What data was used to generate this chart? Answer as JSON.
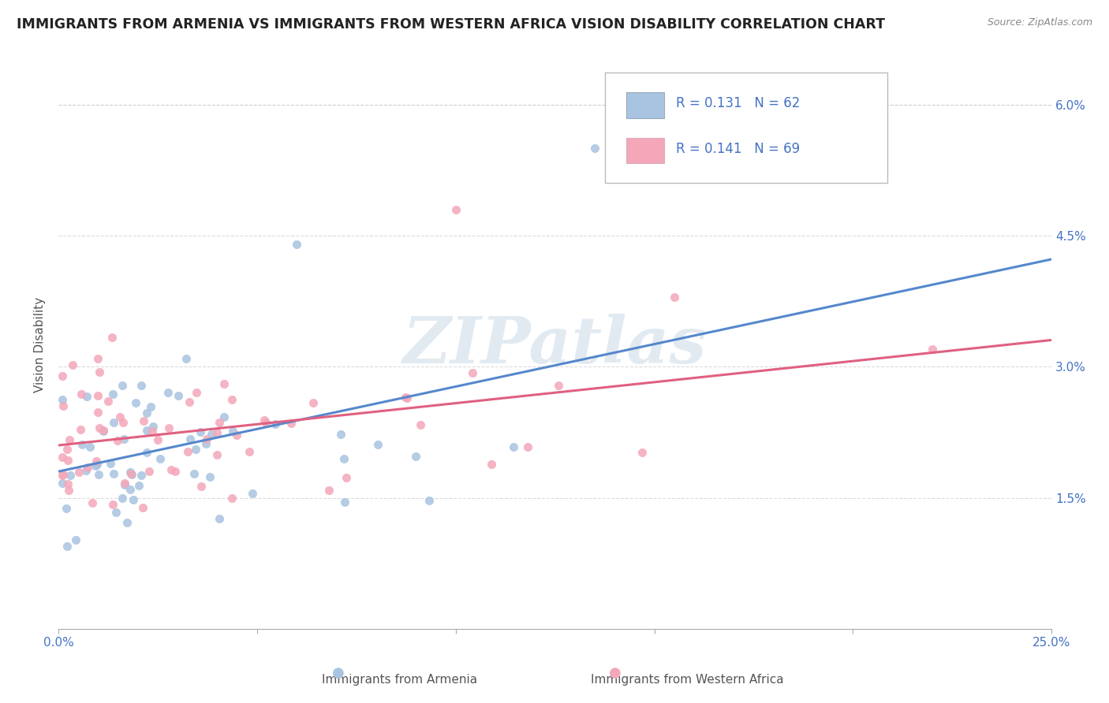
{
  "title": "IMMIGRANTS FROM ARMENIA VS IMMIGRANTS FROM WESTERN AFRICA VISION DISABILITY CORRELATION CHART",
  "source_text": "Source: ZipAtlas.com",
  "ylabel": "Vision Disability",
  "xlim": [
    0.0,
    0.25
  ],
  "ylim": [
    0.0,
    0.065
  ],
  "ytick_vals": [
    0.015,
    0.03,
    0.045,
    0.06
  ],
  "ytick_labels": [
    "1.5%",
    "3.0%",
    "4.5%",
    "6.0%"
  ],
  "xtick_vals": [
    0.0,
    0.25
  ],
  "xtick_labels": [
    "0.0%",
    "25.0%"
  ],
  "r_armenia": 0.131,
  "n_armenia": 62,
  "r_western_africa": 0.141,
  "n_western_africa": 69,
  "color_armenia": "#a8c4e0",
  "color_western_africa": "#f4a7b9",
  "trendline_color_armenia": "#5588cc",
  "trendline_color_western_africa": "#e06080",
  "legend_label_armenia": "Immigrants from Armenia",
  "legend_label_western_africa": "Immigrants from Western Africa",
  "watermark": "ZIPatlas",
  "bg_color": "#ffffff",
  "grid_color": "#cccccc",
  "axis_label_color": "#555555",
  "tick_color": "#4472c4",
  "title_color": "#222222",
  "title_fontsize": 12.5,
  "watermark_color": "#d0dce8",
  "watermark_fontsize": 60
}
